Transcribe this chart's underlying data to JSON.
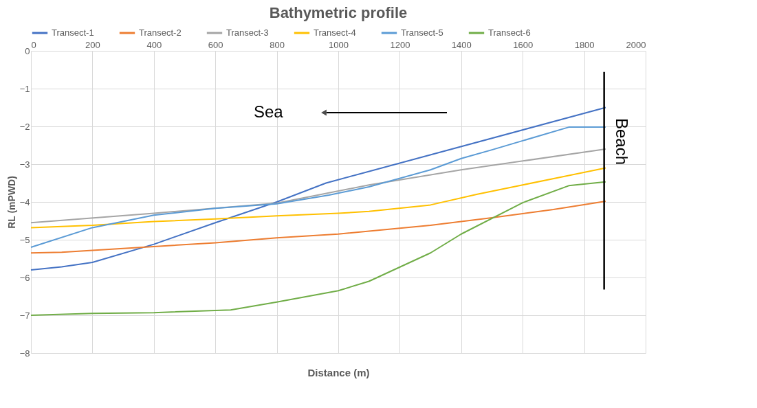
{
  "chart_data": {
    "type": "line",
    "title": "Bathymetric profile",
    "xlabel": "Distance (m)",
    "ylabel": "RL (mPWD)",
    "xlim": [
      0,
      2000
    ],
    "xticks": [
      0,
      200,
      400,
      600,
      800,
      1000,
      1200,
      1400,
      1600,
      1800,
      2000
    ],
    "ylim": [
      -8,
      0
    ],
    "yticks": [
      0,
      -1,
      -2,
      -3,
      -4,
      -5,
      -6,
      -7,
      -8
    ],
    "grid": true,
    "legend": "top",
    "marker": "none",
    "line_style": "solid",
    "annotations": [
      "Sea"
    ],
    "ref_lines": [
      {
        "axis": "x",
        "value": 1865,
        "label": "Beach",
        "color": "#000000"
      }
    ],
    "series": [
      {
        "name": "Transect-1",
        "color": "#4472c4",
        "x": [
          0,
          100,
          200,
          400,
          600,
          800,
          960,
          1870
        ],
        "values": [
          -5.8,
          -5.72,
          -5.6,
          -5.12,
          -4.55,
          -4.0,
          -3.5,
          -1.5
        ]
      },
      {
        "name": "Transect-2",
        "color": "#ed7d31",
        "x": [
          0,
          100,
          200,
          400,
          600,
          800,
          1000,
          1300,
          1500,
          1700,
          1870
        ],
        "values": [
          -5.35,
          -5.33,
          -5.28,
          -5.18,
          -5.08,
          -4.95,
          -4.85,
          -4.62,
          -4.42,
          -4.2,
          -3.98
        ]
      },
      {
        "name": "Transect-3",
        "color": "#a5a5a5",
        "x": [
          0,
          400,
          800,
          1100,
          1400,
          1870
        ],
        "values": [
          -4.55,
          -4.3,
          -4.03,
          -3.55,
          -3.15,
          -2.6
        ]
      },
      {
        "name": "Transect-4",
        "color": "#ffc000",
        "x": [
          0,
          200,
          400,
          600,
          800,
          1000,
          1100,
          1300,
          1450,
          1600,
          1870
        ],
        "values": [
          -4.68,
          -4.62,
          -4.52,
          -4.45,
          -4.37,
          -4.3,
          -4.25,
          -4.08,
          -3.8,
          -3.55,
          -3.1
        ]
      },
      {
        "name": "Transect-5",
        "color": "#5b9bd5",
        "x": [
          0,
          200,
          400,
          600,
          800,
          970,
          1100,
          1300,
          1400,
          1500,
          1600,
          1750,
          1870
        ],
        "values": [
          -5.2,
          -4.68,
          -4.35,
          -4.17,
          -4.05,
          -3.82,
          -3.6,
          -3.15,
          -2.85,
          -2.62,
          -2.38,
          -2.02,
          -2.02
        ]
      },
      {
        "name": "Transect-6",
        "color": "#70ad47",
        "x": [
          0,
          200,
          400,
          650,
          800,
          1000,
          1100,
          1300,
          1400,
          1600,
          1750,
          1870
        ],
        "values": [
          -7.0,
          -6.95,
          -6.93,
          -6.86,
          -6.65,
          -6.35,
          -6.1,
          -5.35,
          -4.85,
          -4.02,
          -3.57,
          -3.47
        ]
      }
    ]
  }
}
